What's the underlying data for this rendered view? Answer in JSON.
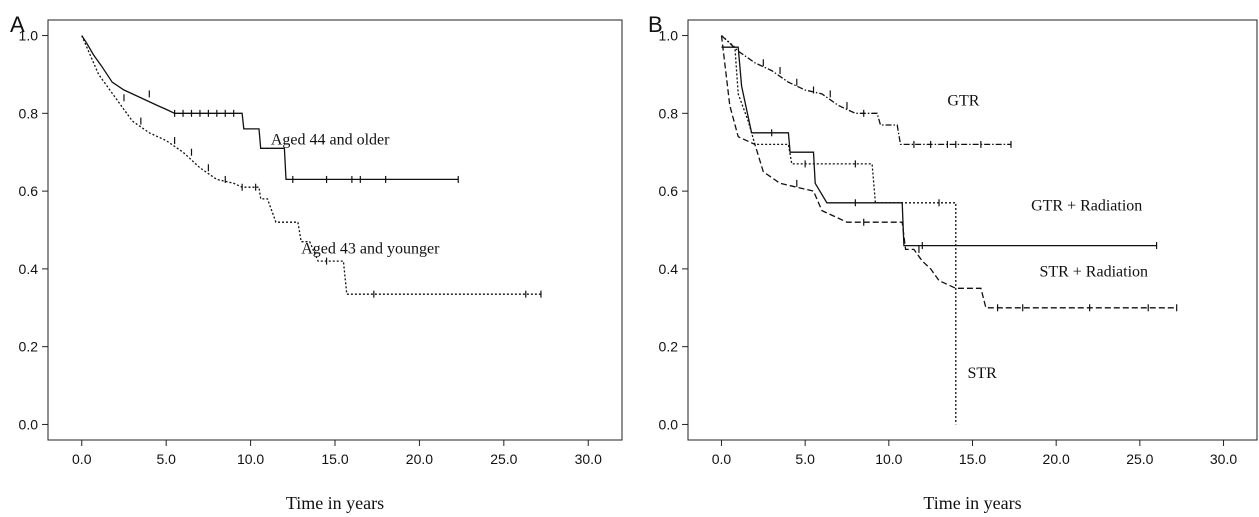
{
  "chart_data": [
    {
      "panel_label": "A",
      "type": "line",
      "title": "",
      "xlabel": "Time in years",
      "ylabel": "",
      "xlim": [
        -2,
        32
      ],
      "ylim": [
        -0.04,
        1.04
      ],
      "x_ticks": [
        "0.0",
        "5.0",
        "10.0",
        "15.0",
        "20.0",
        "25.0",
        "30.0"
      ],
      "y_ticks": [
        "0.0",
        "0.2",
        "0.4",
        "0.6",
        "0.8",
        "1.0"
      ],
      "grid": false,
      "legend": "none",
      "series": [
        {
          "name": "Aged 44 and older",
          "style": "solid",
          "label_at": [
            11.2,
            0.72
          ],
          "points": [
            [
              0,
              1.0
            ],
            [
              0.3,
              0.98
            ],
            [
              0.7,
              0.95
            ],
            [
              1.2,
              0.92
            ],
            [
              1.8,
              0.88
            ],
            [
              2.5,
              0.86
            ],
            [
              3.0,
              0.85
            ],
            [
              4.5,
              0.82
            ],
            [
              5.0,
              0.81
            ],
            [
              5.5,
              0.8
            ],
            [
              9.5,
              0.8
            ],
            [
              9.6,
              0.76
            ],
            [
              10.5,
              0.76
            ],
            [
              10.6,
              0.71
            ],
            [
              12.0,
              0.71
            ],
            [
              12.1,
              0.63
            ],
            [
              22.3,
              0.63
            ]
          ],
          "censor_x": [
            4.0,
            5.5,
            6.0,
            6.5,
            7.0,
            7.5,
            8.0,
            8.5,
            9.0,
            12.5,
            14.5,
            16.0,
            16.5,
            18.0,
            22.3
          ]
        },
        {
          "name": "Aged 43 and younger",
          "style": "dotted",
          "label_at": [
            13.0,
            0.44
          ],
          "points": [
            [
              0,
              1.0
            ],
            [
              0.5,
              0.95
            ],
            [
              1.0,
              0.9
            ],
            [
              2.0,
              0.84
            ],
            [
              3.0,
              0.78
            ],
            [
              4.0,
              0.75
            ],
            [
              5.0,
              0.73
            ],
            [
              6.0,
              0.7
            ],
            [
              7.0,
              0.66
            ],
            [
              8.0,
              0.63
            ],
            [
              9.0,
              0.62
            ],
            [
              9.5,
              0.61
            ],
            [
              10.5,
              0.61
            ],
            [
              10.6,
              0.58
            ],
            [
              11.0,
              0.58
            ],
            [
              11.5,
              0.52
            ],
            [
              12.8,
              0.52
            ],
            [
              13.0,
              0.47
            ],
            [
              13.5,
              0.47
            ],
            [
              14.0,
              0.42
            ],
            [
              15.5,
              0.42
            ],
            [
              15.7,
              0.335
            ],
            [
              27.2,
              0.335
            ]
          ],
          "censor_x": [
            2.5,
            3.5,
            5.5,
            6.5,
            7.5,
            8.5,
            9.5,
            10.3,
            14.5,
            17.3,
            26.3,
            27.2
          ]
        }
      ]
    },
    {
      "panel_label": "B",
      "type": "line",
      "title": "",
      "xlabel": "Time in years",
      "ylabel": "",
      "xlim": [
        -2,
        32
      ],
      "ylim": [
        -0.04,
        1.04
      ],
      "x_ticks": [
        "0.0",
        "5.0",
        "10.0",
        "15.0",
        "20.0",
        "25.0",
        "30.0"
      ],
      "y_ticks": [
        "0.0",
        "0.2",
        "0.4",
        "0.6",
        "0.8",
        "1.0"
      ],
      "grid": false,
      "legend": "none",
      "series": [
        {
          "name": "GTR",
          "style": "dash-dot",
          "label_at": [
            13.5,
            0.82
          ],
          "points": [
            [
              0,
              1.0
            ],
            [
              1.0,
              0.96
            ],
            [
              2.0,
              0.93
            ],
            [
              3.0,
              0.91
            ],
            [
              4.0,
              0.88
            ],
            [
              5.0,
              0.86
            ],
            [
              6.0,
              0.85
            ],
            [
              7.0,
              0.82
            ],
            [
              8.0,
              0.8
            ],
            [
              9.3,
              0.8
            ],
            [
              9.5,
              0.77
            ],
            [
              10.5,
              0.77
            ],
            [
              10.7,
              0.72
            ],
            [
              17.3,
              0.72
            ]
          ],
          "censor_x": [
            2.5,
            3.5,
            4.5,
            5.5,
            6.5,
            7.5,
            8.5,
            11.5,
            12.5,
            13.5,
            14.0,
            15.5,
            17.3
          ]
        },
        {
          "name": "GTR + Radiation",
          "style": "solid",
          "label_at": [
            18.5,
            0.55
          ],
          "points": [
            [
              0,
              0.97
            ],
            [
              1.0,
              0.97
            ],
            [
              1.2,
              0.87
            ],
            [
              1.8,
              0.75
            ],
            [
              2.2,
              0.75
            ],
            [
              4.0,
              0.75
            ],
            [
              4.1,
              0.7
            ],
            [
              5.5,
              0.7
            ],
            [
              5.6,
              0.62
            ],
            [
              6.3,
              0.57
            ],
            [
              10.8,
              0.57
            ],
            [
              10.9,
              0.46
            ],
            [
              26.0,
              0.46
            ]
          ],
          "censor_x": [
            3.0,
            8.0,
            12.0,
            26.0
          ]
        },
        {
          "name": "STR + Radiation",
          "style": "dashed",
          "label_at": [
            19.0,
            0.38
          ],
          "points": [
            [
              0,
              1.0
            ],
            [
              0.5,
              0.82
            ],
            [
              1.0,
              0.74
            ],
            [
              2.0,
              0.72
            ],
            [
              2.5,
              0.65
            ],
            [
              3.5,
              0.62
            ],
            [
              5.5,
              0.6
            ],
            [
              6.0,
              0.55
            ],
            [
              7.5,
              0.52
            ],
            [
              10.8,
              0.52
            ],
            [
              11.0,
              0.45
            ],
            [
              11.5,
              0.45
            ],
            [
              12.0,
              0.42
            ],
            [
              12.5,
              0.4
            ],
            [
              13.0,
              0.37
            ],
            [
              14.0,
              0.35
            ],
            [
              15.5,
              0.35
            ],
            [
              15.8,
              0.3
            ],
            [
              27.2,
              0.3
            ]
          ],
          "censor_x": [
            4.5,
            8.5,
            11.8,
            16.5,
            18.0,
            22.0,
            25.5,
            27.2
          ]
        },
        {
          "name": "STR",
          "style": "dotted",
          "label_at": [
            14.7,
            0.12
          ],
          "points": [
            [
              0,
              1.0
            ],
            [
              0.8,
              0.97
            ],
            [
              1.0,
              0.85
            ],
            [
              1.6,
              0.78
            ],
            [
              2.0,
              0.72
            ],
            [
              4.0,
              0.72
            ],
            [
              4.2,
              0.67
            ],
            [
              9.0,
              0.67
            ],
            [
              9.2,
              0.57
            ],
            [
              14.0,
              0.57
            ],
            [
              14.0,
              0.0
            ]
          ],
          "censor_x": [
            5.0,
            8.0,
            13.0
          ]
        }
      ]
    }
  ]
}
